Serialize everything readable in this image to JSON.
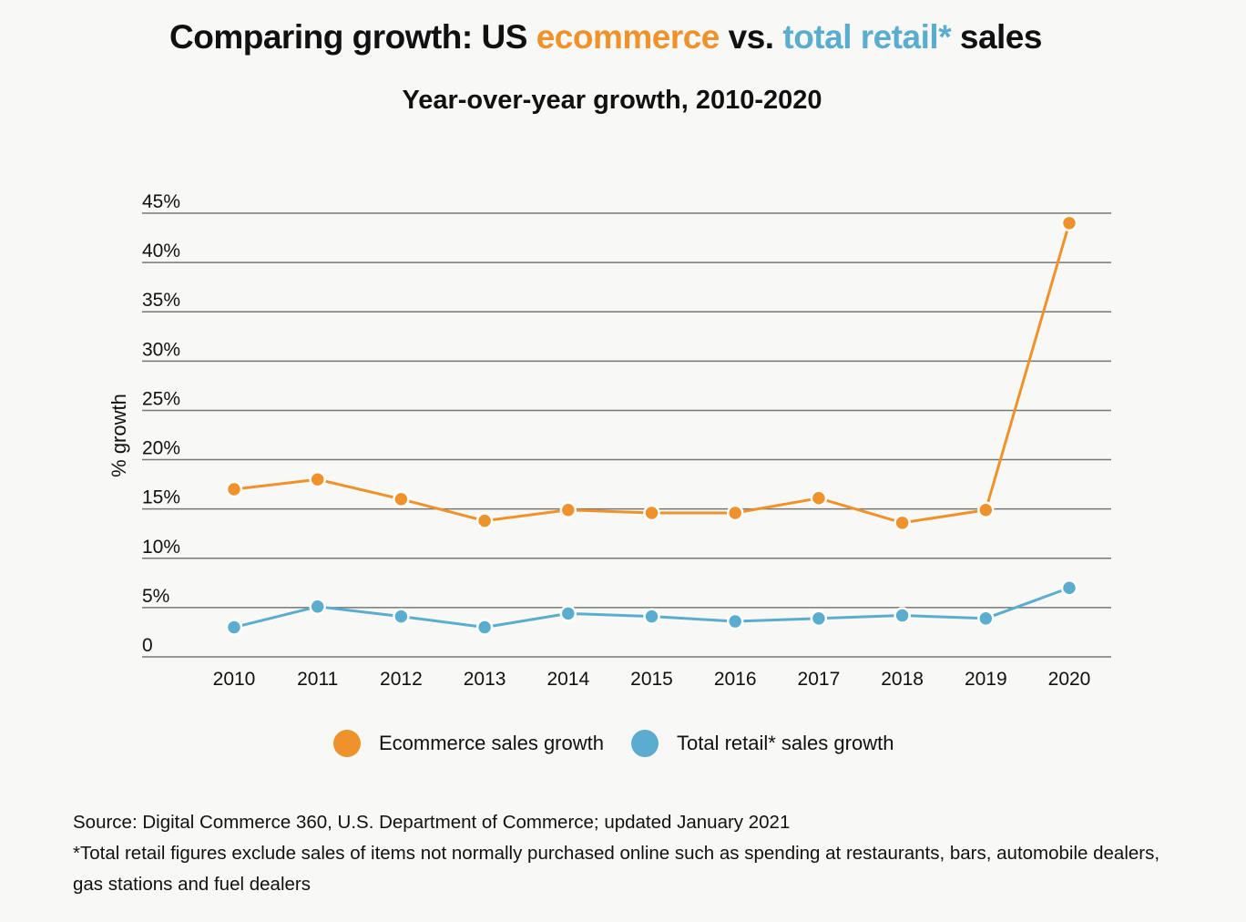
{
  "header": {
    "title_part1": "Comparing growth: US ",
    "title_ecommerce": "ecommerce",
    "title_part2": " vs. ",
    "title_retail": "total retail*",
    "title_part3": " sales",
    "subtitle": "Year-over-year growth, 2010-2020"
  },
  "colors": {
    "ecommerce": "#f0922b",
    "retail": "#5badcf",
    "grid": "#777777",
    "text": "#111111"
  },
  "chart_data": {
    "type": "line",
    "title": "Comparing growth: US ecommerce vs. total retail* sales",
    "subtitle": "Year-over-year growth, 2010-2020",
    "xlabel": "",
    "ylabel": "% growth",
    "categories": [
      "2010",
      "2011",
      "2012",
      "2013",
      "2014",
      "2015",
      "2016",
      "2017",
      "2018",
      "2019",
      "2020"
    ],
    "y_ticks": [
      0,
      5,
      10,
      15,
      20,
      25,
      30,
      35,
      40,
      45
    ],
    "y_tick_labels": [
      "0",
      "5%",
      "10%",
      "15%",
      "20%",
      "25%",
      "30%",
      "35%",
      "40%",
      "45%"
    ],
    "ylim": [
      0,
      45
    ],
    "grid": true,
    "legend_position": "bottom",
    "series": [
      {
        "name": "Ecommerce sales growth",
        "color": "#f0922b",
        "values": [
          17.0,
          18.0,
          16.0,
          13.8,
          14.9,
          14.6,
          14.6,
          16.1,
          13.6,
          14.9,
          44.0
        ]
      },
      {
        "name": "Total retail* sales growth",
        "color": "#5badcf",
        "values": [
          3.0,
          5.1,
          4.1,
          3.0,
          4.4,
          4.1,
          3.6,
          3.9,
          4.2,
          3.9,
          7.0
        ]
      }
    ]
  },
  "legend": {
    "ecommerce_label": "Ecommerce sales growth",
    "retail_label": "Total retail* sales growth"
  },
  "footnotes": {
    "source": "Source: Digital Commerce 360,  U.S. Department of Commerce; updated January 2021",
    "note": "*Total retail figures exclude sales of items not normally purchased online such as spending at restaurants, bars, automobile dealers, gas stations and fuel dealers"
  }
}
